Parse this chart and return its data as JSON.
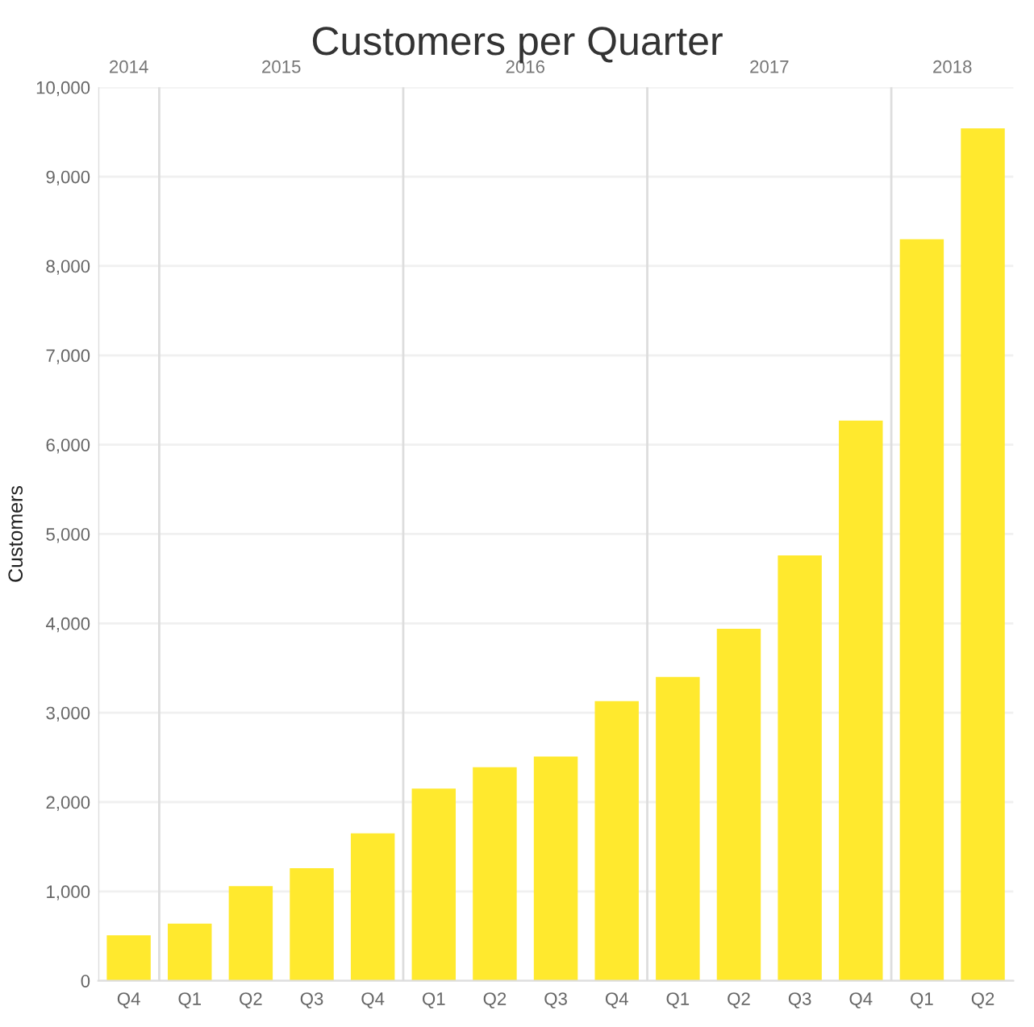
{
  "chart_data": {
    "type": "bar",
    "title": "Customers per Quarter",
    "ylabel": "Customers",
    "categories": [
      "Q4",
      "Q1",
      "Q2",
      "Q3",
      "Q4",
      "Q1",
      "Q2",
      "Q3",
      "Q4",
      "Q1",
      "Q2",
      "Q3",
      "Q4",
      "Q1",
      "Q2"
    ],
    "values": [
      510,
      640,
      1060,
      1260,
      1650,
      2150,
      2390,
      2510,
      3130,
      3400,
      3940,
      4760,
      6270,
      8300,
      9540
    ],
    "color": "#ffe92e",
    "annotations": [
      "2014",
      "2015",
      "2016",
      "2017",
      "2018"
    ],
    "ylim": [
      0,
      10000
    ],
    "yticks": [
      {
        "value": 0,
        "label": "0"
      },
      {
        "value": 1000,
        "label": "1,000"
      },
      {
        "value": 2000,
        "label": "2,000"
      },
      {
        "value": 3000,
        "label": "3,000"
      },
      {
        "value": 4000,
        "label": "4,000"
      },
      {
        "value": 5000,
        "label": "5,000"
      },
      {
        "value": 6000,
        "label": "6,000"
      },
      {
        "value": 7000,
        "label": "7,000"
      },
      {
        "value": 8000,
        "label": "8,000"
      },
      {
        "value": 9000,
        "label": "9,000"
      },
      {
        "value": 10000,
        "label": "10,000"
      }
    ],
    "grid": "y"
  }
}
